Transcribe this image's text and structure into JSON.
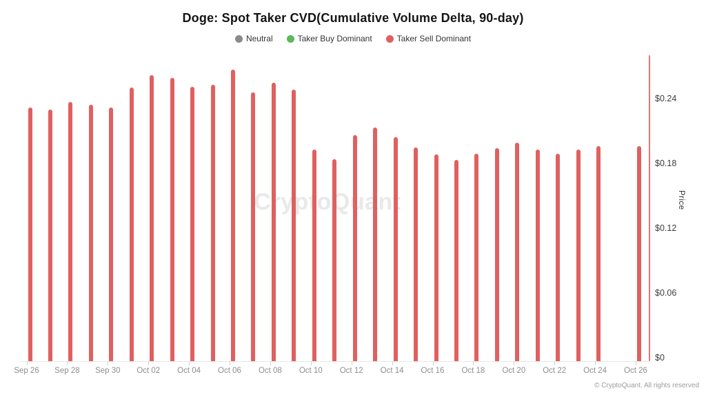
{
  "watermark": "CryptoQuant",
  "footer": "© CryptoQuant. All rights reserved",
  "chart_data": {
    "type": "bar",
    "title": "Doge: Spot Taker CVD(Cumulative Volume Delta, 90-day)",
    "xlabel": "",
    "ylabel": "Price",
    "legend_position": "top",
    "grid": false,
    "y_axis_side": "right",
    "legend": [
      {
        "label": "Neutral",
        "color": "#8a8a8a"
      },
      {
        "label": "Taker Buy Dominant",
        "color": "#5cb85c"
      },
      {
        "label": "Taker Sell Dominant",
        "color": "#e06060"
      }
    ],
    "series_state": "Taker Sell Dominant",
    "bar_color": "#e06060",
    "axis_accent_color": "#e87272",
    "categories": [
      "Sep 26",
      "Sep 27",
      "Sep 28",
      "Sep 29",
      "Sep 30",
      "Oct 01",
      "Oct 02",
      "Oct 03",
      "Oct 04",
      "Oct 05",
      "Oct 06",
      "Oct 07",
      "Oct 08",
      "Oct 09",
      "Oct 10",
      "Oct 11",
      "Oct 12",
      "Oct 13",
      "Oct 14",
      "Oct 15",
      "Oct 16",
      "Oct 17",
      "Oct 18",
      "Oct 19",
      "Oct 20",
      "Oct 21",
      "Oct 22",
      "Oct 23",
      "Oct 24",
      "Oct 25",
      "Oct 26"
    ],
    "values": [
      0.232,
      0.23,
      0.237,
      0.234,
      0.232,
      0.25,
      0.262,
      0.259,
      0.251,
      0.253,
      0.267,
      0.246,
      0.255,
      0.248,
      0.193,
      0.184,
      0.206,
      0.213,
      0.204,
      0.195,
      0.188,
      0.183,
      0.189,
      0.194,
      0.199,
      0.193,
      0.189,
      0.193,
      0.196,
      null,
      0.196
    ],
    "x_tick_labels": [
      "Sep 26",
      "Sep 28",
      "Sep 30",
      "Oct 02",
      "Oct 04",
      "Oct 06",
      "Oct 08",
      "Oct 10",
      "Oct 12",
      "Oct 14",
      "Oct 16",
      "Oct 18",
      "Oct 20",
      "Oct 22",
      "Oct 24",
      "Oct 26"
    ],
    "y_ticks": [
      {
        "label": "$0",
        "value": 0
      },
      {
        "label": "$0.06",
        "value": 0.06
      },
      {
        "label": "$0.12",
        "value": 0.12
      },
      {
        "label": "$0.18",
        "value": 0.18
      },
      {
        "label": "$0.24",
        "value": 0.24
      }
    ],
    "ylim": [
      0,
      0.283
    ]
  }
}
